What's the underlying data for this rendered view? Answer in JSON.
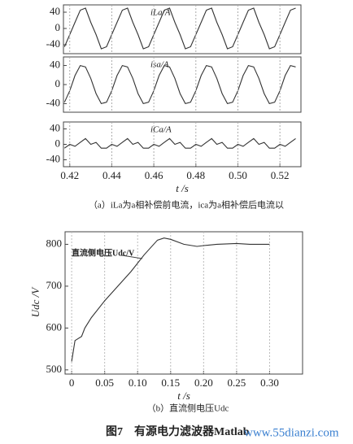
{
  "chart_data": [
    {
      "type": "line",
      "label": "iLa/A",
      "xlim": [
        0.417,
        0.53
      ],
      "ylim": [
        -62,
        58
      ],
      "yticks": [
        -40,
        0,
        40
      ],
      "x": [
        0.4175,
        0.42,
        0.4225,
        0.425,
        0.4275,
        0.43,
        0.4325,
        0.435,
        0.4375,
        0.44,
        0.4425,
        0.445,
        0.4475,
        0.45,
        0.4525,
        0.455,
        0.4575,
        0.46,
        0.4625,
        0.465,
        0.4675,
        0.47,
        0.4725,
        0.475,
        0.4775,
        0.48,
        0.4825,
        0.485,
        0.4875,
        0.49,
        0.4925,
        0.495,
        0.4975,
        0.5,
        0.5025,
        0.505,
        0.5075,
        0.51,
        0.5125,
        0.515,
        0.5175,
        0.52,
        0.5225,
        0.525,
        0.5275
      ],
      "values": [
        -45,
        -15,
        15,
        45,
        50,
        15,
        -15,
        -50,
        -45,
        -15,
        15,
        45,
        50,
        15,
        -15,
        -50,
        -45,
        -15,
        15,
        45,
        50,
        15,
        -15,
        -50,
        -45,
        -15,
        15,
        45,
        50,
        15,
        -15,
        -50,
        -45,
        -15,
        15,
        45,
        50,
        15,
        -15,
        -50,
        -45,
        -15,
        15,
        45,
        50
      ],
      "color": "#333333"
    },
    {
      "type": "line",
      "label": "isa/A",
      "xlim": [
        0.417,
        0.53
      ],
      "ylim": [
        -58,
        58
      ],
      "yticks": [
        -40,
        0,
        40
      ],
      "x": [
        0.4175,
        0.42,
        0.4225,
        0.425,
        0.4275,
        0.43,
        0.4325,
        0.435,
        0.4375,
        0.44,
        0.4425,
        0.445,
        0.4475,
        0.45,
        0.4525,
        0.455,
        0.4575,
        0.46,
        0.4625,
        0.465,
        0.4675,
        0.47,
        0.4725,
        0.475,
        0.4775,
        0.48,
        0.4825,
        0.485,
        0.4875,
        0.49,
        0.4925,
        0.495,
        0.4975,
        0.5,
        0.5025,
        0.505,
        0.5075,
        0.51,
        0.5125,
        0.515,
        0.5175,
        0.52,
        0.5225,
        0.525,
        0.5275
      ],
      "values": [
        -37,
        -13,
        19,
        40,
        37,
        13,
        -19,
        -40,
        -37,
        -13,
        19,
        40,
        37,
        13,
        -19,
        -40,
        -37,
        -13,
        19,
        40,
        37,
        13,
        -19,
        -40,
        -37,
        -13,
        19,
        40,
        37,
        13,
        -19,
        -40,
        -37,
        -13,
        19,
        40,
        37,
        13,
        -19,
        -40,
        -37,
        -13,
        19,
        40,
        37
      ],
      "color": "#333333"
    },
    {
      "type": "line",
      "label": "iCa/A",
      "xlabel": "t /s",
      "caption": "（a）iLa为a相补偿前电流，ica为a相补偿后电流以",
      "xlim": [
        0.417,
        0.53
      ],
      "ylim": [
        -58,
        58
      ],
      "yticks": [
        -40,
        0,
        40
      ],
      "xticks": [
        0.42,
        0.44,
        0.46,
        0.48,
        {
          "value": 0.5,
          "label": "0.50"
        },
        0.52
      ],
      "x": [
        0.4175,
        0.42,
        0.4225,
        0.425,
        0.4275,
        0.43,
        0.4325,
        0.435,
        0.4375,
        0.44,
        0.4425,
        0.445,
        0.4475,
        0.45,
        0.4525,
        0.455,
        0.4575,
        0.46,
        0.4625,
        0.465,
        0.4675,
        0.47,
        0.4725,
        0.475,
        0.4775,
        0.48,
        0.4825,
        0.485,
        0.4875,
        0.49,
        0.4925,
        0.495,
        0.4975,
        0.5,
        0.5025,
        0.505,
        0.5075,
        0.51,
        0.5125,
        0.515,
        0.5175,
        0.52,
        0.5225,
        0.525,
        0.5275
      ],
      "values": [
        -10,
        0,
        -5,
        5,
        15,
        0,
        5,
        -10,
        -10,
        0,
        -5,
        5,
        15,
        0,
        5,
        -10,
        -10,
        0,
        -5,
        5,
        15,
        0,
        5,
        -10,
        -10,
        0,
        -5,
        5,
        15,
        0,
        5,
        -10,
        -10,
        0,
        -5,
        5,
        15,
        0,
        5,
        -10,
        -10,
        0,
        -5,
        5,
        15
      ],
      "color": "#333333"
    },
    {
      "type": "line",
      "label": "直流侧电压Udc/V",
      "ylabel": "Udc /V",
      "xlabel": "t /s",
      "caption": "（b）直流侧电压Udc",
      "xlim": [
        -0.01,
        0.35
      ],
      "ylim": [
        490,
        830
      ],
      "yticks": [
        500,
        600,
        700,
        800
      ],
      "xticks": [
        0,
        0.05,
        {
          "value": 0.1,
          "label": "0.10"
        },
        0.15,
        {
          "value": 0.2,
          "label": "0.20"
        },
        0.25,
        {
          "value": 0.3,
          "label": "0.30"
        }
      ],
      "x": [
        0,
        0.005,
        0.01,
        0.015,
        0.02,
        0.03,
        0.05,
        0.07,
        0.09,
        0.11,
        0.13,
        0.14,
        0.15,
        0.17,
        0.19,
        0.2,
        0.22,
        0.25,
        0.27,
        0.3
      ],
      "values": [
        520,
        570,
        575,
        580,
        600,
        625,
        665,
        700,
        735,
        775,
        810,
        815,
        812,
        800,
        795,
        797,
        800,
        802,
        800,
        800
      ],
      "color": "#333333"
    }
  ],
  "figure_caption": "图7　有源电力滤波器Matlab",
  "watermark": "www.55dianzi.com"
}
